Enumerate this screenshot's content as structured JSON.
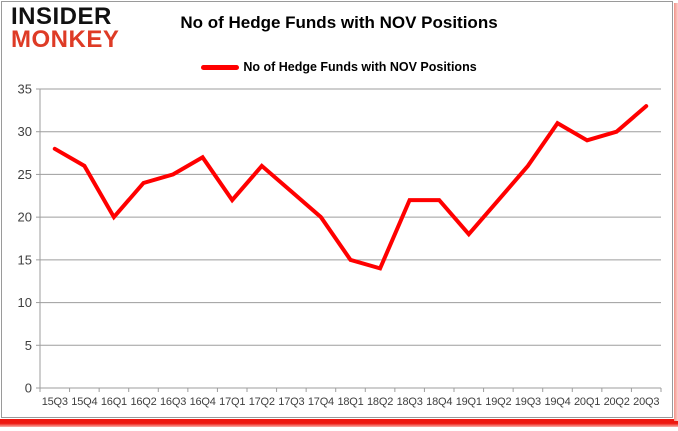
{
  "branding": {
    "logo_line1": "INSIDER",
    "logo_line2": "MONKEY"
  },
  "header": {
    "title": "No of Hedge Funds with NOV Positions"
  },
  "legend": {
    "label": "No of Hedge Funds with NOV Positions",
    "color": "#FF0000"
  },
  "colors": {
    "series_red": "#FF0000",
    "logo_red": "#DE3B26",
    "grid_gray": "#9D9D9D",
    "axis_text": "#404040",
    "shadow_red": "#EE1810",
    "shadow_pink": "#F8AFA8",
    "frame_border": "#9A9A9A"
  },
  "chart_data": {
    "type": "line",
    "title": "No of Hedge Funds with NOV Positions",
    "categories": [
      "15Q3",
      "15Q4",
      "16Q1",
      "16Q2",
      "16Q3",
      "16Q4",
      "17Q1",
      "17Q2",
      "17Q3",
      "17Q4",
      "18Q1",
      "18Q2",
      "18Q3",
      "18Q4",
      "19Q1",
      "19Q2",
      "19Q3",
      "19Q4",
      "20Q1",
      "20Q2",
      "20Q3"
    ],
    "series": [
      {
        "name": "No of Hedge Funds with NOV Positions",
        "color": "#FF0000",
        "values": [
          28,
          26,
          20,
          24,
          25,
          27,
          22,
          26,
          23,
          20,
          15,
          14,
          22,
          22,
          18,
          22,
          26,
          31,
          29,
          30,
          33
        ]
      }
    ],
    "xlabel": "",
    "ylabel": "",
    "ylim": [
      0,
      35
    ],
    "yticks": [
      0,
      5,
      10,
      15,
      20,
      25,
      30,
      35
    ],
    "ytick_labels": [
      "0",
      "5",
      "10",
      "15",
      "20",
      "25",
      "30",
      "35"
    ],
    "grid": "horizontal",
    "legend_position": "top-center"
  }
}
